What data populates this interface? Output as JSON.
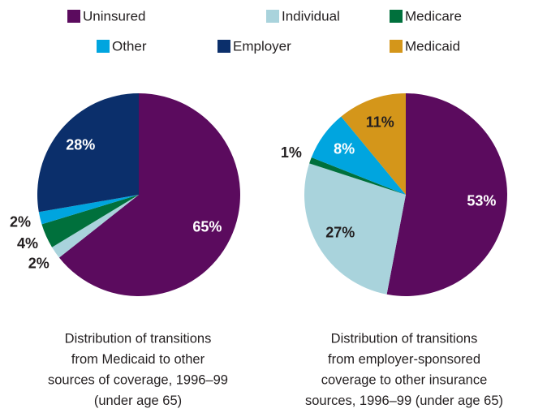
{
  "legend": {
    "names": [
      "Uninsured",
      "Individual",
      "Medicare",
      "Other",
      "Employer",
      "Medicaid"
    ],
    "colors": [
      "#5b0b5e",
      "#a9d3dc",
      "#00703c",
      "#00a5df",
      "#0b2f6b",
      "#d4961a"
    ],
    "text_colors": [
      "#ffffff",
      "#231f20",
      "#231f20",
      "#ffffff",
      "#ffffff",
      "#231f20"
    ]
  },
  "chart_data": [
    {
      "type": "pie",
      "categories": [
        "Uninsured",
        "Individual",
        "Medicare",
        "Other",
        "Employer"
      ],
      "values": [
        65,
        2,
        4,
        2,
        28
      ],
      "value_labels": [
        "65%",
        "2%",
        "4%",
        "2%",
        "28%"
      ],
      "caption": [
        "Distribution of transitions",
        "from Medicaid to other",
        "sources of coverage, 1996–99",
        "(under age 65)"
      ]
    },
    {
      "type": "pie",
      "categories": [
        "Uninsured",
        "Individual",
        "Medicare",
        "Other",
        "Medicaid"
      ],
      "values": [
        53,
        27,
        1,
        8,
        11
      ],
      "value_labels": [
        "53%",
        "27%",
        "1%",
        "8%",
        "11%"
      ],
      "caption": [
        "Distribution of transitions",
        "from employer-sponsored",
        "coverage to other insurance",
        "sources, 1996–99 (under age 65)"
      ]
    }
  ]
}
